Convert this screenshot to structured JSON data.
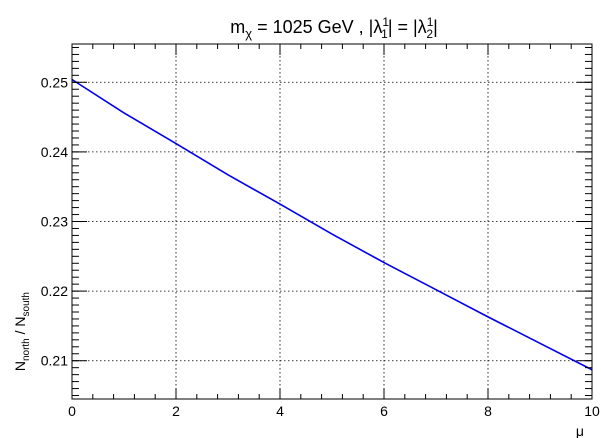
{
  "chart_data": {
    "type": "line",
    "title": {
      "m": "m",
      "m_sub": "χ",
      "mass": " = 1025 GeV ,  |λ",
      "l1_sup": "1",
      "l1_sub": "1",
      "mid": "| = |λ",
      "l2_sup": "1",
      "l2_sub": "2",
      "end": "|"
    },
    "xlabel": "μ",
    "ylabel": {
      "n1": "N",
      "n1_sub": "north",
      "slash": " / N",
      "n2_sub": "south"
    },
    "xlim": [
      0,
      10
    ],
    "ylim": [
      0.2045,
      0.2555
    ],
    "x_ticks": [
      0,
      2,
      4,
      6,
      8,
      10
    ],
    "y_ticks": [
      0.21,
      0.22,
      0.23,
      0.24,
      0.25
    ],
    "x_tick_labels": [
      "0",
      "2",
      "4",
      "6",
      "8",
      "10"
    ],
    "y_tick_labels": [
      "0.21",
      "0.22",
      "0.23",
      "0.24",
      "0.25"
    ],
    "grid": true,
    "line_color": "#0000ee",
    "series": [
      {
        "x": [
          0,
          1,
          2,
          3,
          4,
          5,
          6,
          7,
          8,
          9,
          10
        ],
        "y": [
          0.2504,
          0.2456,
          0.2412,
          0.2367,
          0.2325,
          0.2282,
          0.2241,
          0.2202,
          0.2163,
          0.2125,
          0.2087
        ]
      }
    ]
  }
}
